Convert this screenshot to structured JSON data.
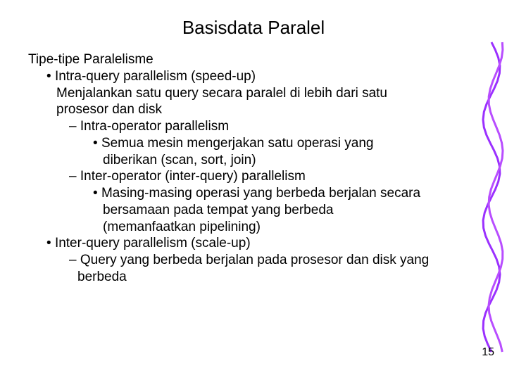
{
  "title": "Basisdata Paralel",
  "subtitle": "Tipe-tipe Paralelisme",
  "b1": "Intra-query parallelism (speed-up)",
  "b1_desc": "Menjalankan satu query secara paralel di lebih dari satu prosesor dan disk",
  "b1_s1": "Intra-operator parallelism",
  "b1_s1_d": "Semua mesin mengerjakan satu operasi yang diberikan (scan, sort, join)",
  "b1_s2": "Inter-operator (inter-query) parallelism",
  "b1_s2_d": "Masing-masing operasi yang berbeda berjalan secara bersamaan pada tempat yang berbeda (memanfaatkan  pipelining)",
  "b2": "Inter-query parallelism (scale-up)",
  "b2_s1": "Query yang berbeda berjalan pada prosesor dan disk yang berbeda",
  "page_number": "15",
  "deco": {
    "stroke1": "#9b30ff",
    "stroke2": "#b84dff",
    "stroke_width": 3
  }
}
